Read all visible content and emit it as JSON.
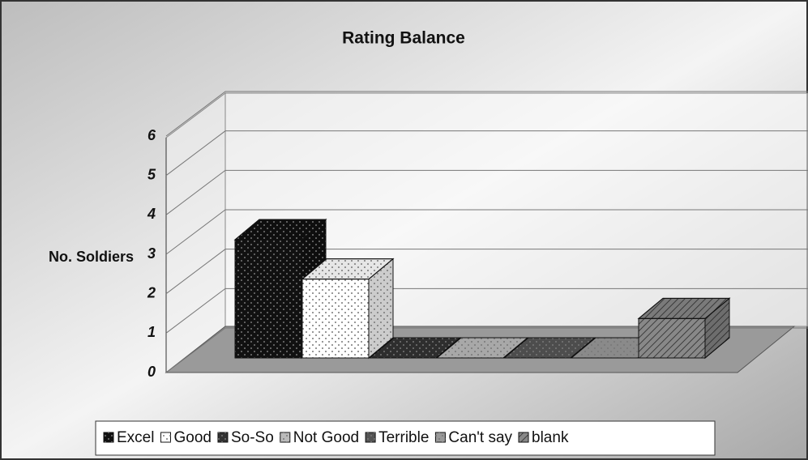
{
  "chart_data": {
    "type": "bar",
    "title": "Rating Balance",
    "y_label": "No. Soldiers",
    "series": [
      {
        "name": "Excel",
        "color": "#111111",
        "values": [
          3
        ]
      },
      {
        "name": "Good",
        "color": "#ffffff",
        "values": [
          2
        ]
      },
      {
        "name": "So-So",
        "color": "#333333",
        "values": [
          0
        ]
      },
      {
        "name": "Not Good",
        "color": "#bbbbbb",
        "values": [
          0
        ]
      },
      {
        "name": "Terrible",
        "color": "#555555",
        "values": [
          0
        ]
      },
      {
        "name": "Can't say",
        "color": "#999999",
        "values": [
          0
        ]
      },
      {
        "name": "blank",
        "color": "#888888",
        "values": [
          1
        ]
      }
    ],
    "ylim": [
      0,
      6
    ],
    "yticks": [
      0,
      1,
      2,
      3,
      4,
      5,
      6
    ],
    "grid": true,
    "legend": "bottom"
  }
}
